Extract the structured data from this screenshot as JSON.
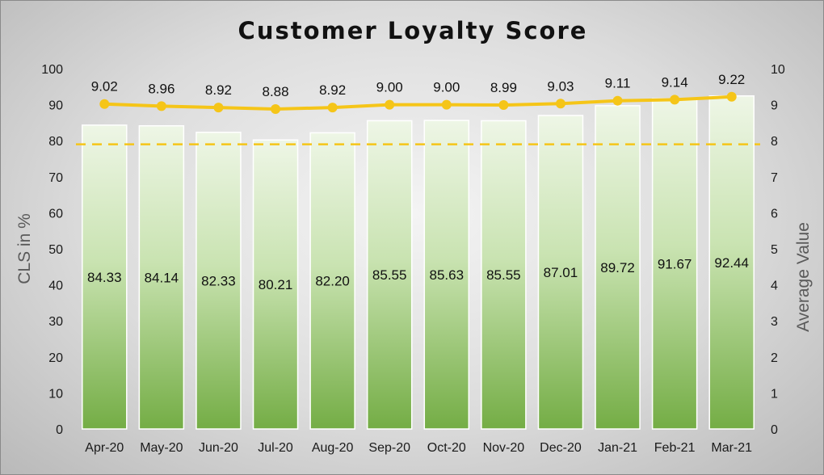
{
  "chart_data": {
    "type": "bar",
    "title": "Customer Loyalty Score",
    "categories": [
      "Apr-20",
      "May-20",
      "Jun-20",
      "Jul-20",
      "Aug-20",
      "Sep-20",
      "Oct-20",
      "Nov-20",
      "Dec-20",
      "Jan-21",
      "Feb-21",
      "Mar-21"
    ],
    "series": [
      {
        "type": "bar",
        "axis": "left",
        "values": [
          84.33,
          84.14,
          82.33,
          80.21,
          82.2,
          85.55,
          85.63,
          85.55,
          87.01,
          89.72,
          91.67,
          92.44
        ],
        "labels": [
          "84.33",
          "84.14",
          "82.33",
          "80.21",
          "82.20",
          "85.55",
          "85.63",
          "85.55",
          "87.01",
          "89.72",
          "91.67",
          "92.44"
        ],
        "color": "#7cb342"
      },
      {
        "type": "line",
        "axis": "right",
        "values": [
          9.02,
          8.96,
          8.92,
          8.88,
          8.92,
          9.0,
          9.0,
          8.99,
          9.03,
          9.11,
          9.14,
          9.22
        ],
        "labels": [
          "9.02",
          "8.96",
          "8.92",
          "8.88",
          "8.92",
          "9.00",
          "9.00",
          "8.99",
          "9.03",
          "9.11",
          "9.14",
          "9.22"
        ],
        "color": "#f5c518"
      }
    ],
    "reference_line": {
      "value": 79,
      "axis": "left",
      "style": "dashed",
      "color": "#f5c518"
    },
    "ylabel": "CLS in %",
    "y2label": "Average Value",
    "ylim": [
      0,
      100
    ],
    "y2lim": [
      0,
      10
    ],
    "yticks": [
      "0",
      "10",
      "20",
      "30",
      "40",
      "50",
      "60",
      "70",
      "80",
      "90",
      "100"
    ],
    "y2ticks": [
      "0",
      "1",
      "2",
      "3",
      "4",
      "5",
      "6",
      "7",
      "8",
      "9",
      "10"
    ],
    "grid": false,
    "legend": "none"
  }
}
